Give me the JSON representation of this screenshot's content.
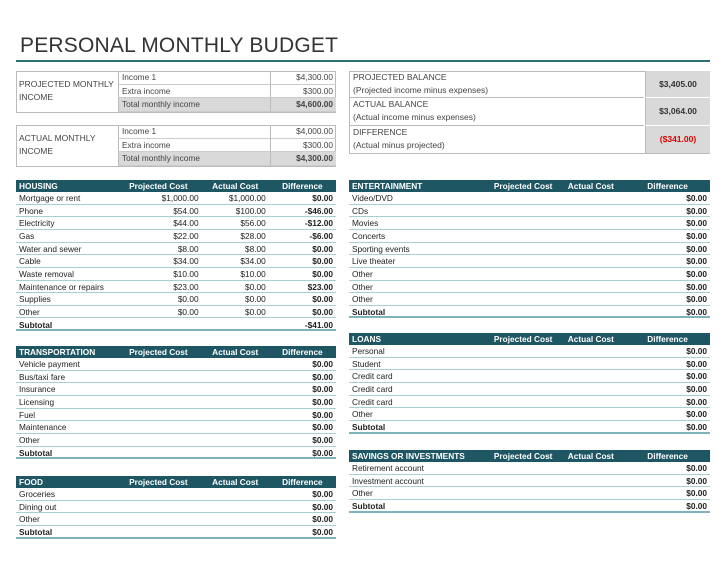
{
  "title": "PERSONAL MONTHLY BUDGET",
  "income": [
    {
      "label": "PROJECTED MONTHLY INCOME",
      "rows": [
        [
          "Income 1",
          "$4,300.00"
        ],
        [
          "Extra income",
          "$300.00"
        ],
        [
          "Total monthly income",
          "$4,600.00"
        ]
      ]
    },
    {
      "label": "ACTUAL MONTHLY INCOME",
      "rows": [
        [
          "Income 1",
          "$4,000.00"
        ],
        [
          "Extra income",
          "$300.00"
        ],
        [
          "Total monthly income",
          "$4,300.00"
        ]
      ]
    }
  ],
  "balance": [
    {
      "label": "PROJECTED BALANCE",
      "note": "(Projected income minus expenses)",
      "value": "$3,405.00"
    },
    {
      "label": "ACTUAL BALANCE",
      "note": "(Actual income minus expenses)",
      "value": "$3,064.00"
    },
    {
      "label": "DIFFERENCE",
      "note": "(Actual minus projected)",
      "value": "($341.00)"
    }
  ],
  "tables": [
    {
      "header": [
        "HOUSING",
        "Projected Cost",
        "Actual Cost",
        "Difference"
      ],
      "rows": [
        [
          "Mortgage or rent",
          "$1,000.00",
          "$1,000.00",
          "$0.00"
        ],
        [
          "Phone",
          "$54.00",
          "$100.00",
          "-$46.00"
        ],
        [
          "Electricity",
          "$44.00",
          "$56.00",
          "-$12.00"
        ],
        [
          "Gas",
          "$22.00",
          "$28.00",
          "-$6.00"
        ],
        [
          "Water and sewer",
          "$8.00",
          "$8.00",
          "$0.00"
        ],
        [
          "Cable",
          "$34.00",
          "$34.00",
          "$0.00"
        ],
        [
          "Waste removal",
          "$10.00",
          "$10.00",
          "$0.00"
        ],
        [
          "Maintenance or repairs",
          "$23.00",
          "$0.00",
          "$23.00"
        ],
        [
          "Supplies",
          "$0.00",
          "$0.00",
          "$0.00"
        ],
        [
          "Other",
          "$0.00",
          "$0.00",
          "$0.00"
        ]
      ],
      "subtotal": [
        "Subtotal",
        null,
        null,
        "-$41.00"
      ]
    },
    {
      "header": [
        "TRANSPORTATION",
        "Projected Cost",
        "Actual Cost",
        "Difference"
      ],
      "rows": [
        [
          "Vehicle payment",
          null,
          null,
          "$0.00"
        ],
        [
          "Bus/taxi fare",
          null,
          null,
          "$0.00"
        ],
        [
          "Insurance",
          null,
          null,
          "$0.00"
        ],
        [
          "Licensing",
          null,
          null,
          "$0.00"
        ],
        [
          "Fuel",
          null,
          null,
          "$0.00"
        ],
        [
          "Maintenance",
          null,
          null,
          "$0.00"
        ],
        [
          "Other",
          null,
          null,
          "$0.00"
        ]
      ],
      "subtotal": [
        "Subtotal",
        null,
        null,
        "$0.00"
      ]
    },
    {
      "header": [
        "FOOD",
        "Projected Cost",
        "Actual Cost",
        "Difference"
      ],
      "rows": [
        [
          "Groceries",
          null,
          null,
          "$0.00"
        ],
        [
          "Dining out",
          null,
          null,
          "$0.00"
        ],
        [
          "Other",
          null,
          null,
          "$0.00"
        ]
      ],
      "subtotal": [
        "Subtotal",
        null,
        null,
        "$0.00"
      ]
    },
    {
      "header": [
        "ENTERTAINMENT",
        "Projected Cost",
        "Actual Cost",
        "Difference"
      ],
      "rows": [
        [
          "Video/DVD",
          null,
          null,
          "$0.00"
        ],
        [
          "CDs",
          null,
          null,
          "$0.00"
        ],
        [
          "Movies",
          null,
          null,
          "$0.00"
        ],
        [
          "Concerts",
          null,
          null,
          "$0.00"
        ],
        [
          "Sporting events",
          null,
          null,
          "$0.00"
        ],
        [
          "Live theater",
          null,
          null,
          "$0.00"
        ],
        [
          "Other",
          null,
          null,
          "$0.00"
        ],
        [
          "Other",
          null,
          null,
          "$0.00"
        ],
        [
          "Other",
          null,
          null,
          "$0.00"
        ]
      ],
      "subtotal": [
        "Subtotal",
        null,
        null,
        "$0.00"
      ]
    },
    {
      "header": [
        "LOANS",
        "Projected Cost",
        "Actual Cost",
        "Difference"
      ],
      "rows": [
        [
          "Personal",
          null,
          null,
          "$0.00"
        ],
        [
          "Student",
          null,
          null,
          "$0.00"
        ],
        [
          "Credit card",
          null,
          null,
          "$0.00"
        ],
        [
          "Credit card",
          null,
          null,
          "$0.00"
        ],
        [
          "Credit card",
          null,
          null,
          "$0.00"
        ],
        [
          "Other",
          null,
          null,
          "$0.00"
        ]
      ],
      "subtotal": [
        "Subtotal",
        null,
        null,
        "$0.00"
      ]
    },
    {
      "header": [
        "SAVINGS OR INVESTMENTS",
        "Projected Cost",
        "Actual Cost",
        "Difference"
      ],
      "rows": [
        [
          "Retirement account",
          null,
          null,
          "$0.00"
        ],
        [
          "Investment account",
          null,
          null,
          "$0.00"
        ],
        [
          "Other",
          null,
          null,
          "$0.00"
        ]
      ],
      "subtotal": [
        "Subtotal",
        null,
        null,
        "$0.00"
      ]
    }
  ]
}
